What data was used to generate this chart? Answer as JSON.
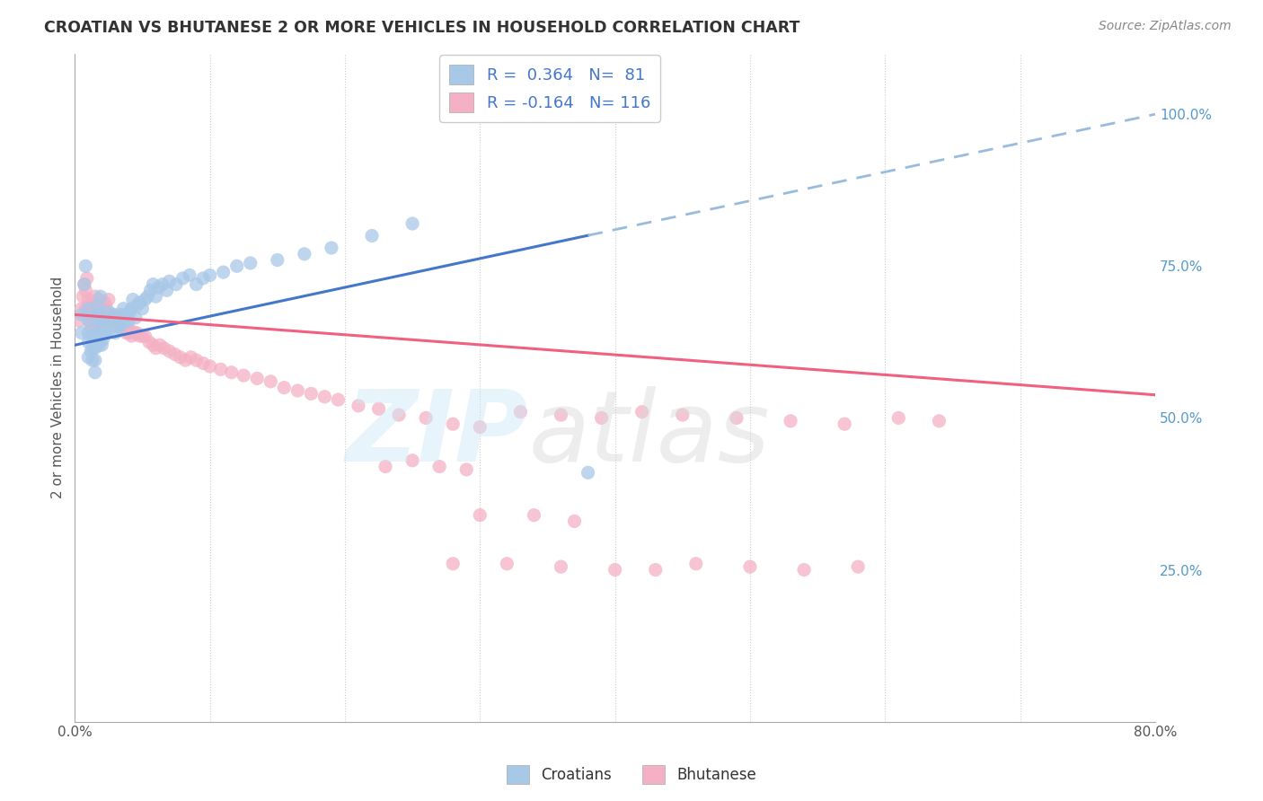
{
  "title": "CROATIAN VS BHUTANESE 2 OR MORE VEHICLES IN HOUSEHOLD CORRELATION CHART",
  "source": "Source: ZipAtlas.com",
  "ylabel": "2 or more Vehicles in Household",
  "xlim": [
    0.0,
    0.8
  ],
  "ylim": [
    0.0,
    1.1
  ],
  "croatian_R": 0.364,
  "croatian_N": 81,
  "bhutanese_R": -0.164,
  "bhutanese_N": 116,
  "croatian_color": "#a8c8e8",
  "bhutanese_color": "#f4b0c4",
  "croatian_line_color": "#4477cc",
  "bhutanese_line_color": "#f06080",
  "trendline_dashed_color": "#99bbdd",
  "legend_text_color": "#4477cc",
  "background_color": "#ffffff",
  "grid_color": "#cccccc",
  "title_color": "#333333",
  "source_color": "#888888",
  "axis_color": "#aaaaaa",
  "right_tick_color": "#5599cc",
  "croatian_trendline_intercept": 0.62,
  "croatian_trendline_slope": 0.475,
  "bhutanese_trendline_intercept": 0.67,
  "bhutanese_trendline_slope": -0.165,
  "croatian_x": [
    0.005,
    0.005,
    0.007,
    0.008,
    0.01,
    0.01,
    0.01,
    0.01,
    0.01,
    0.012,
    0.012,
    0.013,
    0.013,
    0.014,
    0.015,
    0.015,
    0.015,
    0.016,
    0.016,
    0.017,
    0.017,
    0.018,
    0.018,
    0.019,
    0.019,
    0.02,
    0.02,
    0.021,
    0.021,
    0.022,
    0.022,
    0.023,
    0.024,
    0.025,
    0.025,
    0.026,
    0.027,
    0.028,
    0.029,
    0.03,
    0.03,
    0.031,
    0.032,
    0.033,
    0.034,
    0.035,
    0.036,
    0.037,
    0.038,
    0.04,
    0.041,
    0.042,
    0.043,
    0.045,
    0.046,
    0.048,
    0.05,
    0.052,
    0.054,
    0.056,
    0.058,
    0.06,
    0.062,
    0.065,
    0.068,
    0.07,
    0.075,
    0.08,
    0.085,
    0.09,
    0.095,
    0.1,
    0.11,
    0.12,
    0.13,
    0.15,
    0.17,
    0.19,
    0.22,
    0.25,
    0.38
  ],
  "croatian_y": [
    0.64,
    0.67,
    0.72,
    0.75,
    0.6,
    0.625,
    0.64,
    0.66,
    0.68,
    0.61,
    0.635,
    0.595,
    0.615,
    0.635,
    0.575,
    0.595,
    0.615,
    0.635,
    0.66,
    0.67,
    0.685,
    0.62,
    0.645,
    0.67,
    0.7,
    0.62,
    0.65,
    0.63,
    0.655,
    0.64,
    0.665,
    0.65,
    0.66,
    0.645,
    0.675,
    0.655,
    0.66,
    0.665,
    0.67,
    0.64,
    0.665,
    0.65,
    0.66,
    0.65,
    0.67,
    0.655,
    0.68,
    0.66,
    0.67,
    0.66,
    0.675,
    0.68,
    0.695,
    0.665,
    0.685,
    0.69,
    0.68,
    0.695,
    0.7,
    0.71,
    0.72,
    0.7,
    0.715,
    0.72,
    0.71,
    0.725,
    0.72,
    0.73,
    0.735,
    0.72,
    0.73,
    0.735,
    0.74,
    0.75,
    0.755,
    0.76,
    0.77,
    0.78,
    0.8,
    0.82,
    0.41
  ],
  "bhutanese_x": [
    0.003,
    0.005,
    0.006,
    0.007,
    0.008,
    0.008,
    0.009,
    0.01,
    0.01,
    0.011,
    0.011,
    0.012,
    0.012,
    0.013,
    0.013,
    0.014,
    0.014,
    0.015,
    0.015,
    0.015,
    0.016,
    0.016,
    0.017,
    0.017,
    0.018,
    0.018,
    0.019,
    0.019,
    0.02,
    0.02,
    0.021,
    0.021,
    0.022,
    0.022,
    0.023,
    0.023,
    0.024,
    0.025,
    0.025,
    0.026,
    0.027,
    0.028,
    0.029,
    0.03,
    0.031,
    0.032,
    0.033,
    0.034,
    0.035,
    0.036,
    0.037,
    0.038,
    0.039,
    0.04,
    0.041,
    0.042,
    0.044,
    0.046,
    0.048,
    0.05,
    0.052,
    0.055,
    0.058,
    0.06,
    0.063,
    0.066,
    0.07,
    0.074,
    0.078,
    0.082,
    0.086,
    0.09,
    0.095,
    0.1,
    0.108,
    0.116,
    0.125,
    0.135,
    0.145,
    0.155,
    0.165,
    0.175,
    0.185,
    0.195,
    0.21,
    0.225,
    0.24,
    0.26,
    0.28,
    0.3,
    0.33,
    0.36,
    0.39,
    0.42,
    0.45,
    0.49,
    0.53,
    0.57,
    0.61,
    0.64,
    0.3,
    0.34,
    0.37,
    0.28,
    0.32,
    0.36,
    0.4,
    0.43,
    0.46,
    0.5,
    0.54,
    0.58,
    0.23,
    0.25,
    0.27,
    0.29
  ],
  "bhutanese_y": [
    0.66,
    0.68,
    0.7,
    0.72,
    0.68,
    0.71,
    0.73,
    0.67,
    0.695,
    0.66,
    0.685,
    0.65,
    0.675,
    0.665,
    0.69,
    0.66,
    0.685,
    0.65,
    0.675,
    0.7,
    0.66,
    0.685,
    0.655,
    0.68,
    0.67,
    0.695,
    0.66,
    0.685,
    0.66,
    0.685,
    0.66,
    0.685,
    0.665,
    0.69,
    0.66,
    0.685,
    0.67,
    0.67,
    0.695,
    0.665,
    0.67,
    0.665,
    0.67,
    0.665,
    0.66,
    0.655,
    0.65,
    0.655,
    0.66,
    0.655,
    0.65,
    0.64,
    0.645,
    0.64,
    0.645,
    0.635,
    0.64,
    0.64,
    0.635,
    0.635,
    0.635,
    0.625,
    0.62,
    0.615,
    0.62,
    0.615,
    0.61,
    0.605,
    0.6,
    0.595,
    0.6,
    0.595,
    0.59,
    0.585,
    0.58,
    0.575,
    0.57,
    0.565,
    0.56,
    0.55,
    0.545,
    0.54,
    0.535,
    0.53,
    0.52,
    0.515,
    0.505,
    0.5,
    0.49,
    0.485,
    0.51,
    0.505,
    0.5,
    0.51,
    0.505,
    0.5,
    0.495,
    0.49,
    0.5,
    0.495,
    0.34,
    0.34,
    0.33,
    0.26,
    0.26,
    0.255,
    0.25,
    0.25,
    0.26,
    0.255,
    0.25,
    0.255,
    0.42,
    0.43,
    0.42,
    0.415
  ]
}
